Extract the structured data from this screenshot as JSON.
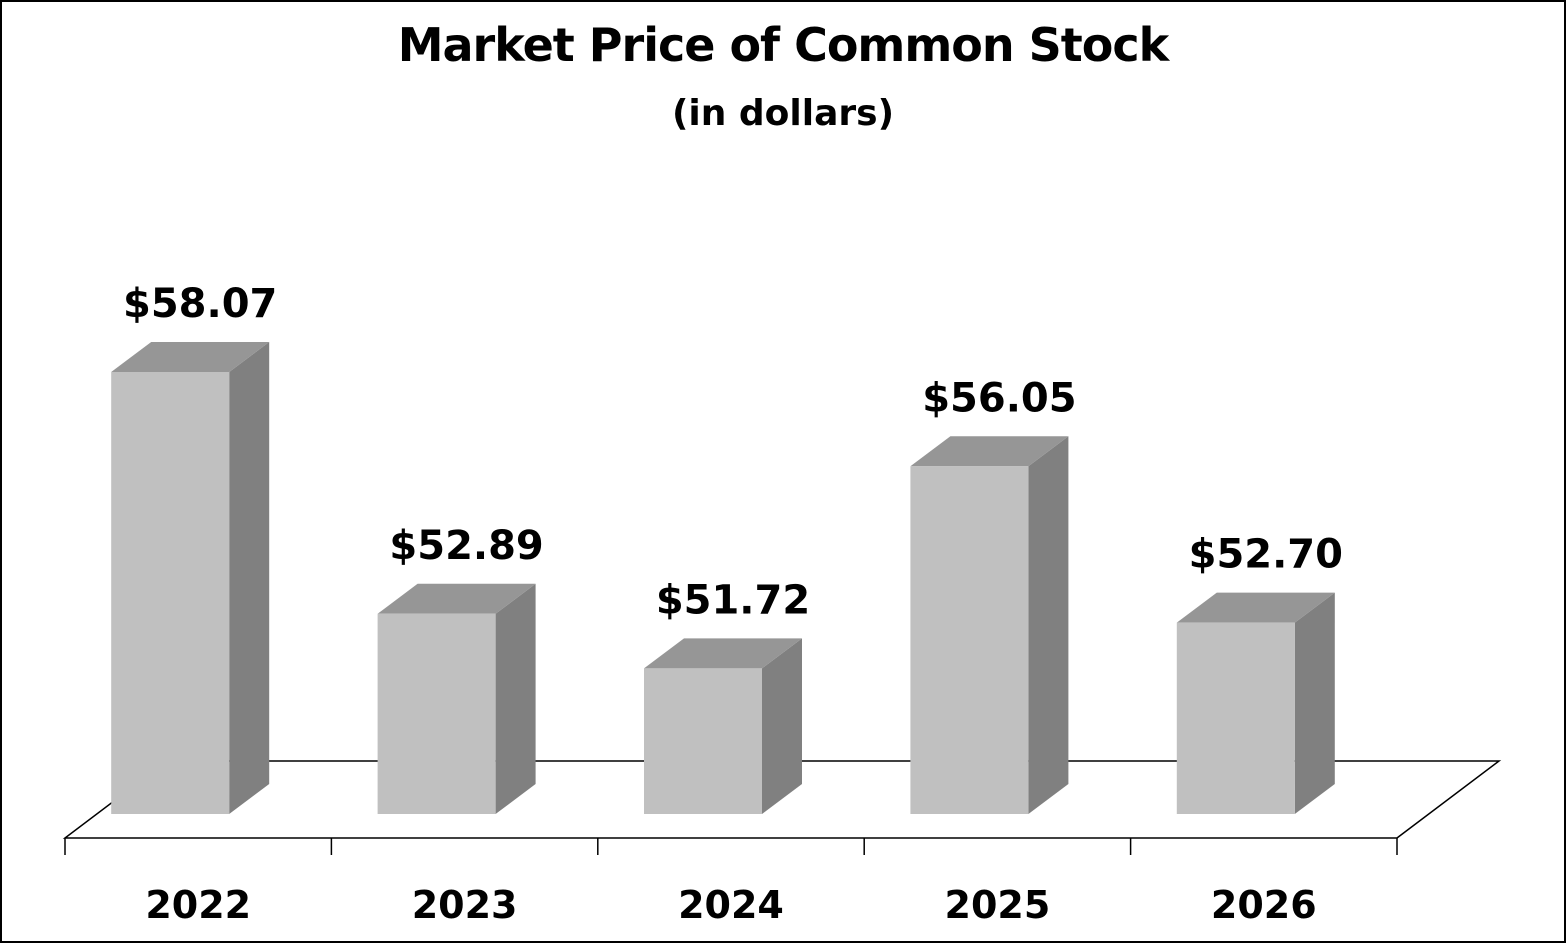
{
  "chart_data": {
    "type": "bar",
    "style": "3d-column",
    "title": "Market Price of Common Stock",
    "subtitle": "(in dollars)",
    "xlabel": "",
    "ylabel": "",
    "categories": [
      "2022",
      "2023",
      "2024",
      "2025",
      "2026"
    ],
    "values": [
      58.07,
      52.89,
      51.72,
      56.05,
      52.7
    ],
    "data_labels": [
      "$58.07",
      "$52.89",
      "$51.72",
      "$56.05",
      "$52.70"
    ],
    "ylim": [
      48.6,
      58.07
    ],
    "grid": false,
    "legend": "none",
    "colors": {
      "front": "#c0c0c0",
      "side": "#808080",
      "top": "#969696",
      "floor_line": "#000000"
    }
  }
}
